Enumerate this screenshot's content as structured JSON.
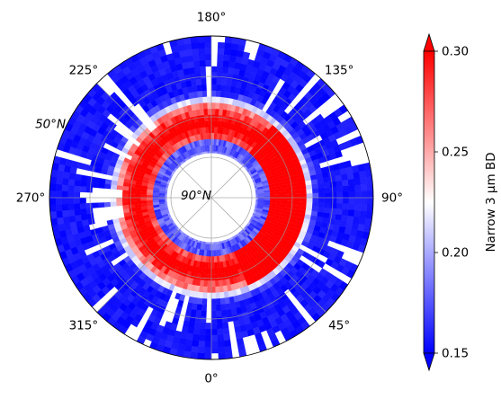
{
  "chart_data": {
    "type": "heatmap",
    "projection": "polar-stereographic, north polar view",
    "angle_tick_labels": [
      {
        "deg": 0,
        "label": "0°"
      },
      {
        "deg": 45,
        "label": "45°"
      },
      {
        "deg": 90,
        "label": "90°"
      },
      {
        "deg": 135,
        "label": "135°"
      },
      {
        "deg": 180,
        "label": "180°"
      },
      {
        "deg": 225,
        "label": "225°"
      },
      {
        "deg": 270,
        "label": "270°"
      },
      {
        "deg": 315,
        "label": "315°"
      }
    ],
    "radial_tick_labels": [
      {
        "lat": 90,
        "label": "90°N"
      },
      {
        "lat": 50,
        "label": "50°N"
      }
    ],
    "latitude_range": [
      90,
      50
    ],
    "latitude_gridlines": [
      90,
      80,
      70,
      60,
      50
    ],
    "longitude_gridlines_every_deg": 45,
    "grid": true,
    "colorbar": {
      "label": "Narrow 3 μm BD",
      "range": [
        0.15,
        0.3
      ],
      "ticks": [
        "0.15",
        "0.20",
        "0.25",
        "0.30"
      ],
      "tick_values": [
        0.15,
        0.2,
        0.25,
        0.3
      ],
      "colormap": "bwr",
      "extend": "both",
      "position": "right"
    },
    "colors": {
      "low": "#0000ff",
      "mid": "#ffffff",
      "high": "#ff0000"
    },
    "regions": [
      {
        "name": "outer-ring",
        "lat_range": [
          50,
          67
        ],
        "typical_value": 0.15
      },
      {
        "name": "red-band",
        "lat_range": [
          67,
          76
        ],
        "typical_value": 0.3
      },
      {
        "name": "inner-ring",
        "lat_range": [
          76,
          79
        ],
        "typical_value": 0.16
      },
      {
        "name": "polar-cap",
        "lat_range": [
          79,
          90
        ],
        "typical_value": null
      }
    ]
  }
}
